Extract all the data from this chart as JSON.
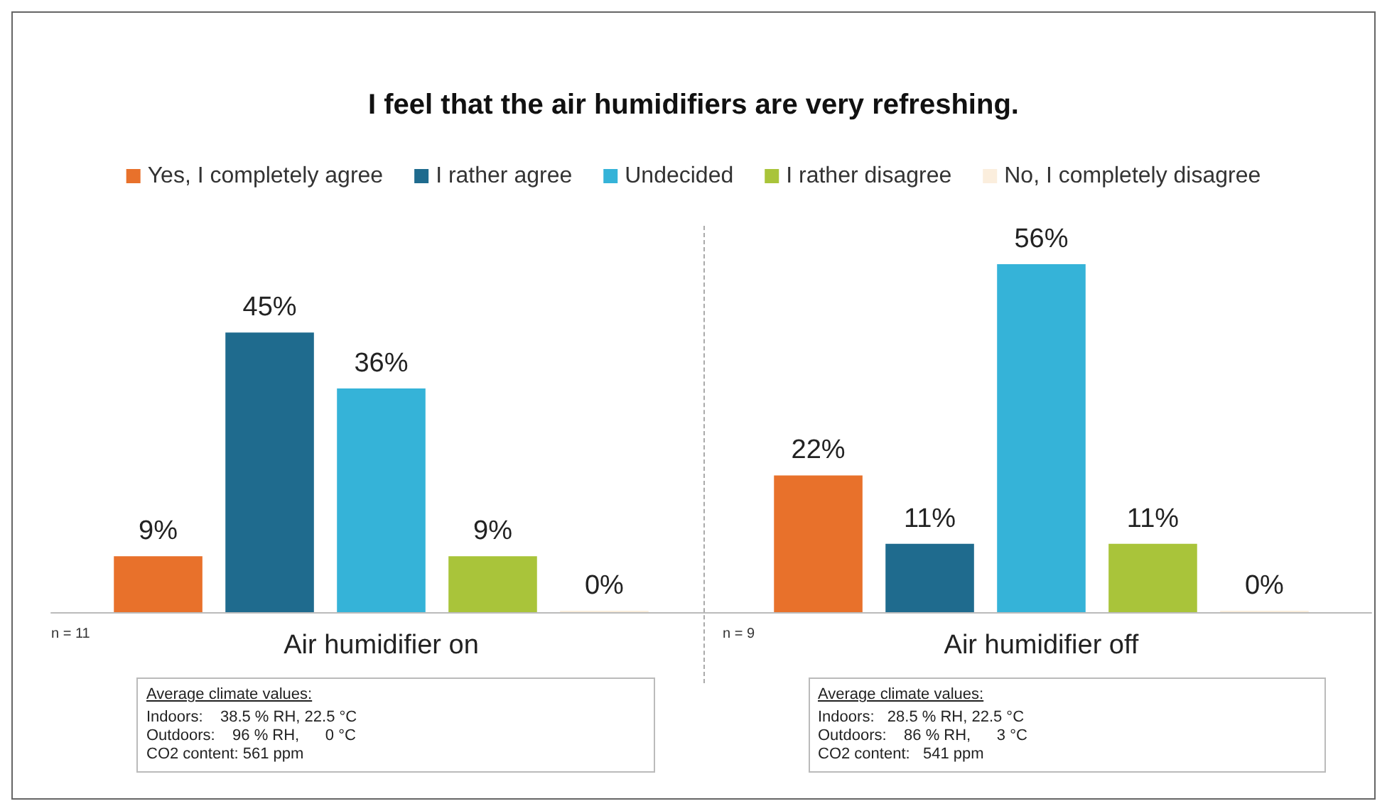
{
  "chart_data": {
    "type": "bar",
    "title": "I feel that the air humidifiers are very refreshing.",
    "legend": "top",
    "categories": [
      "Air humidifier on",
      "Air humidifier off"
    ],
    "series": [
      {
        "name": "Yes, I completely agree",
        "color": "#e8712b",
        "values": [
          9,
          22
        ],
        "value_labels": [
          "9%",
          "22%"
        ]
      },
      {
        "name": "I rather agree",
        "color": "#1f6b8e",
        "values": [
          45,
          11
        ],
        "value_labels": [
          "45%",
          "11%"
        ]
      },
      {
        "name": "Undecided",
        "color": "#35b3d8",
        "values": [
          36,
          56
        ],
        "value_labels": [
          "36%",
          "56%"
        ]
      },
      {
        "name": "I rather disagree",
        "color": "#a9c43a",
        "values": [
          9,
          11
        ],
        "value_labels": [
          "9%",
          "11%"
        ]
      },
      {
        "name": "No, I completely disagree",
        "color": "#fbeedd",
        "values": [
          0,
          0
        ],
        "value_labels": [
          "0%",
          "0%"
        ]
      }
    ],
    "annotations": [
      "n = 11",
      "Average climate values:",
      "Indoors:    38.5 % RH, 22.5 °C",
      "Outdoors:    96 % RH,      0 °C",
      "CO2 content: 561 ppm",
      "n = 9",
      "Average climate values:",
      "Indoors:   28.5 % RH, 22.5 °C",
      "Outdoors:    86 % RH,      3 °C",
      "CO2 content:   541 ppm"
    ]
  }
}
